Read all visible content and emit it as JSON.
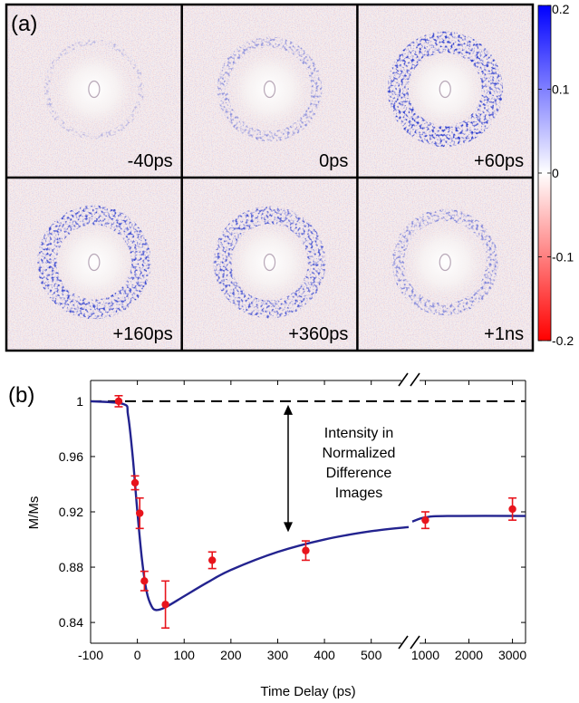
{
  "panel_a": {
    "label": "(a)",
    "frames": [
      "-40ps",
      "0ps",
      "+60ps",
      "+160ps",
      "+360ps",
      "+1ns"
    ],
    "ring_strength": [
      0.05,
      0.35,
      1.0,
      0.9,
      0.8,
      0.45
    ],
    "colorbar": {
      "ticks": [
        "0.2",
        "0.1",
        "0",
        "-0.1",
        "-0.2"
      ],
      "values": [
        0.2,
        0.1,
        0,
        -0.1,
        -0.2
      ],
      "range": [
        -0.2,
        0.2
      ],
      "top_color": "#0000ff",
      "mid_color": "#ffffff",
      "bottom_color": "#ff0000"
    }
  },
  "panel_b": {
    "label": "(b)",
    "annotation": [
      "Intensity in",
      "Normalized",
      "Difference",
      "Images"
    ]
  },
  "chart_data": {
    "type": "scatter",
    "title": "",
    "xlabel": "Time Delay (ps)",
    "ylabel": "M/Ms",
    "ylim": [
      0.825,
      1.015
    ],
    "yticks": [
      1,
      0.96,
      0.92,
      0.88,
      0.84
    ],
    "ytick_labels": [
      "1",
      "0.96",
      "0.92",
      "0.88",
      "0.84"
    ],
    "x_axis_broken": true,
    "x_segment_1": {
      "range": [
        -100,
        580
      ],
      "ticks": [
        -100,
        0,
        100,
        200,
        300,
        400,
        500
      ],
      "tick_labels": [
        "-100",
        "0",
        "100",
        "200",
        "300",
        "400",
        "500"
      ]
    },
    "x_segment_2": {
      "range": [
        700,
        3300
      ],
      "ticks": [
        1000,
        2000,
        3000
      ],
      "tick_labels": [
        "1000",
        "2000",
        "3000"
      ]
    },
    "reference_line": {
      "y": 1,
      "style": "dashed"
    },
    "grid": false,
    "series": [
      {
        "type": "scatter_errorbar",
        "color": "#e8141c",
        "points": [
          {
            "x": -40,
            "y": 1.0,
            "err": 0.004
          },
          {
            "x": -5,
            "y": 0.941,
            "err": 0.005
          },
          {
            "x": 5,
            "y": 0.919,
            "err": 0.011
          },
          {
            "x": 15,
            "y": 0.87,
            "err": 0.007
          },
          {
            "x": 60,
            "y": 0.853,
            "err": 0.017
          },
          {
            "x": 160,
            "y": 0.885,
            "err": 0.006
          },
          {
            "x": 360,
            "y": 0.892,
            "err": 0.007
          },
          {
            "x": 1000,
            "y": 0.914,
            "err": 0.006
          },
          {
            "x": 3000,
            "y": 0.922,
            "err": 0.008
          }
        ]
      },
      {
        "type": "fit_line",
        "color": "#23238f",
        "points": [
          {
            "x": -100,
            "y": 1.0
          },
          {
            "x": -30,
            "y": 0.998
          },
          {
            "x": -20,
            "y": 0.99
          },
          {
            "x": -10,
            "y": 0.96
          },
          {
            "x": 0,
            "y": 0.92
          },
          {
            "x": 10,
            "y": 0.885
          },
          {
            "x": 20,
            "y": 0.862
          },
          {
            "x": 30,
            "y": 0.852
          },
          {
            "x": 40,
            "y": 0.849
          },
          {
            "x": 60,
            "y": 0.851
          },
          {
            "x": 100,
            "y": 0.859
          },
          {
            "x": 150,
            "y": 0.869
          },
          {
            "x": 200,
            "y": 0.878
          },
          {
            "x": 300,
            "y": 0.891
          },
          {
            "x": 400,
            "y": 0.9
          },
          {
            "x": 500,
            "y": 0.906
          },
          {
            "x": 580,
            "y": 0.909
          },
          {
            "x": 700,
            "y": 0.913
          },
          {
            "x": 1000,
            "y": 0.916
          },
          {
            "x": 1500,
            "y": 0.917
          },
          {
            "x": 3300,
            "y": 0.917
          }
        ]
      }
    ]
  }
}
